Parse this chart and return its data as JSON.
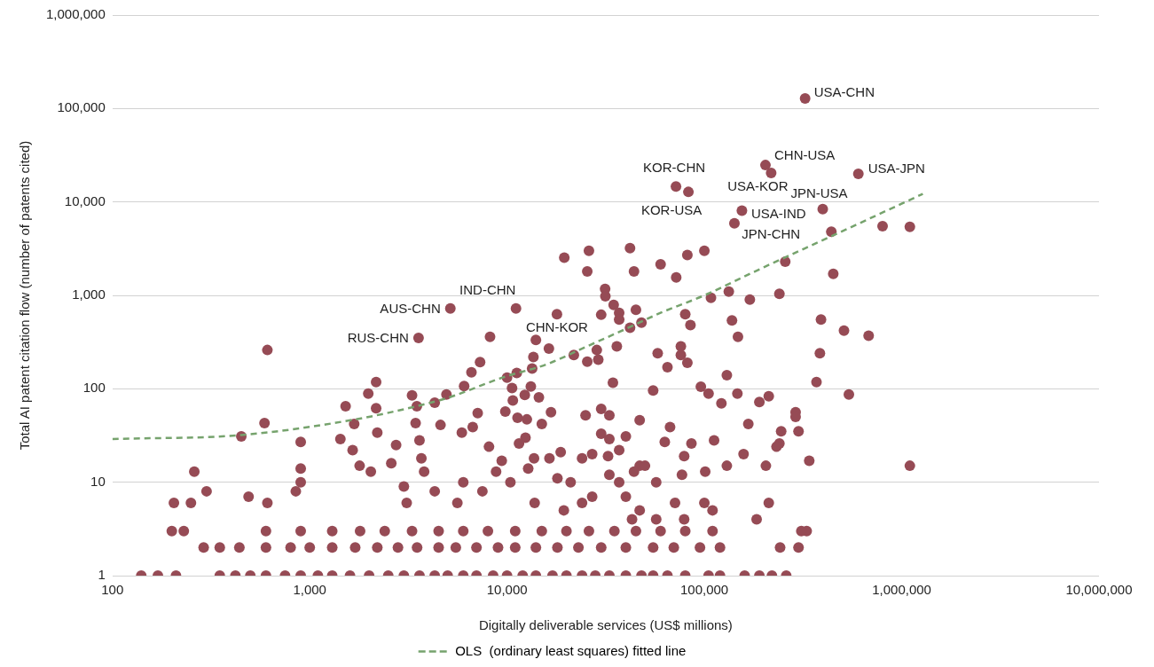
{
  "chart_data": {
    "type": "scatter",
    "xlabel": "Digitally deliverable services (US$ millions)",
    "ylabel": "Total AI patent citation flow (number of patents cited)",
    "log": "xy",
    "grid": "y",
    "legend": "bottom",
    "marker": "circle",
    "xlim": [
      100,
      10000000
    ],
    "xticks": [
      {
        "value": 100,
        "label": "100"
      },
      {
        "value": 1000,
        "label": "1,000"
      },
      {
        "value": 10000,
        "label": "10,000"
      },
      {
        "value": 100000,
        "label": "100,000"
      },
      {
        "value": 1000000,
        "label": "1,000,000"
      },
      {
        "value": 10000000,
        "label": "10,000,000"
      }
    ],
    "ylim": [
      1,
      1000000
    ],
    "yticks": [
      {
        "value": 1,
        "label": "1"
      },
      {
        "value": 10,
        "label": "10"
      },
      {
        "value": 100,
        "label": "100"
      },
      {
        "value": 1000,
        "label": "1,000"
      },
      {
        "value": 10000,
        "label": "10,000"
      },
      {
        "value": 100000,
        "label": "100,000"
      },
      {
        "value": 1000000,
        "label": "1,000,000"
      }
    ],
    "series": [
      {
        "type": "scatter",
        "color": "#964b55",
        "x": [
          140,
          170,
          210,
          350,
          420,
          500,
          600,
          750,
          900,
          1100,
          1300,
          1600,
          2000,
          2500,
          3000,
          3600,
          4300,
          5000,
          6000,
          7000,
          8500,
          10000,
          12000,
          14000,
          17000,
          20000,
          24000,
          28000,
          33000,
          40000,
          48000,
          55000,
          65000,
          80000,
          105000,
          120000,
          160000,
          190000,
          220000,
          260000,
          290,
          350,
          440,
          600,
          800,
          1000,
          1300,
          1700,
          2200,
          2800,
          3500,
          4500,
          5500,
          7000,
          9000,
          11000,
          14000,
          18000,
          23000,
          30000,
          40000,
          55000,
          70000,
          95000,
          120000,
          200,
          230,
          600,
          900,
          1300,
          1800,
          2400,
          3300,
          4500,
          6000,
          8000,
          11000,
          15000,
          20000,
          26000,
          35000,
          45000,
          60000,
          80000,
          110000,
          330000,
          250,
          260,
          300,
          205,
          450,
          590,
          610,
          490,
          610,
          900,
          900,
          900,
          850,
          1520,
          1980,
          2170,
          1680,
          2170,
          2200,
          1430,
          1650,
          1790,
          2040,
          2740,
          2590,
          3300,
          3490,
          3440,
          3600,
          3680,
          4300,
          4930,
          4600,
          5900,
          6060,
          6600,
          7300,
          8200,
          7100,
          6700,
          8100,
          10000,
          10600,
          10700,
          9800,
          11300,
          12600,
          13200,
          13600,
          14000,
          14500,
          12400,
          11500,
          3000,
          3100,
          3800,
          4300,
          5600,
          6000,
          7500,
          8800,
          9400,
          10400,
          12800,
          13800,
          19500,
          26000,
          25500,
          42000,
          44000,
          60000,
          72000,
          82000,
          100000,
          257000,
          440000,
          450000,
          17900,
          31400,
          31500,
          34700,
          37000,
          37000,
          30000,
          45000,
          48000,
          42000,
          80000,
          85000,
          108000,
          133000,
          170000,
          240000,
          138000,
          148000,
          390000,
          385000,
          370000,
          28500,
          29000,
          36000,
          25500,
          21800,
          16300,
          13400,
          11200,
          58000,
          76000,
          76000,
          82000,
          65000,
          130000,
          96000,
          105000,
          122000,
          147000,
          190000,
          212000,
          290000,
          300000,
          240000,
          167000,
          158000,
          205000,
          130000,
          340000,
          212000,
          184000,
          55000,
          34400,
          47000,
          40000,
          67000,
          63000,
          86000,
          79000,
          101000,
          77000,
          112000,
          100000,
          110000,
          71000,
          57000,
          79000,
          30000,
          33000,
          25000,
          30000,
          33000,
          32500,
          37000,
          27000,
          24000,
          47000,
          44000,
          50000,
          57000,
          37000,
          33000,
          21000,
          18000,
          15000,
          16700,
          12300,
          18700,
          16400,
          13700,
          24000,
          27000,
          40000,
          47000,
          43000,
          19400,
          800000,
          1100000,
          510000,
          680000,
          540000,
          290000,
          245000,
          232000,
          1100000,
          310000,
          242000,
          300000,
          324000,
          204000,
          218000,
          603000,
          71800,
          83000,
          155000,
          142000,
          398000,
          5160,
          11100,
          3560
        ],
        "values": [
          1,
          1,
          1,
          1,
          1,
          1,
          1,
          1,
          1,
          1,
          1,
          1,
          1,
          1,
          1,
          1,
          1,
          1,
          1,
          1,
          1,
          1,
          1,
          1,
          1,
          1,
          1,
          1,
          1,
          1,
          1,
          1,
          1,
          1,
          1,
          1,
          1,
          1,
          1,
          1,
          2,
          2,
          2,
          2,
          2,
          2,
          2,
          2,
          2,
          2,
          2,
          2,
          2,
          2,
          2,
          2,
          2,
          2,
          2,
          2,
          2,
          2,
          2,
          2,
          2,
          3,
          3,
          3,
          3,
          3,
          3,
          3,
          3,
          3,
          3,
          3,
          3,
          3,
          3,
          3,
          3,
          3,
          3,
          3,
          3,
          3,
          6,
          13,
          8,
          6,
          31,
          43,
          260,
          7,
          6,
          27,
          14,
          10,
          8,
          65,
          89,
          118,
          42,
          62,
          34,
          29,
          22,
          15,
          13,
          25,
          16,
          85,
          65,
          43,
          28,
          18,
          71,
          87,
          41,
          34,
          107,
          150,
          193,
          360,
          55,
          39,
          24,
          132,
          102,
          75,
          57,
          49,
          47,
          106,
          219,
          333,
          81,
          30,
          26,
          9,
          6,
          13,
          8,
          6,
          10,
          8,
          13,
          17,
          10,
          14,
          6,
          2530,
          3000,
          1800,
          3200,
          1800,
          2150,
          1560,
          2700,
          3000,
          2300,
          4800,
          1700,
          630,
          1170,
          980,
          790,
          650,
          550,
          620,
          700,
          510,
          450,
          630,
          480,
          940,
          1100,
          900,
          1040,
          540,
          360,
          550,
          240,
          118,
          260,
          205,
          285,
          195,
          230,
          270,
          165,
          148,
          240,
          285,
          230,
          190,
          170,
          140,
          105,
          89,
          70,
          89,
          72,
          83,
          56,
          35,
          26,
          42,
          20,
          15,
          15,
          17,
          6,
          4,
          96,
          116,
          46,
          31,
          39,
          27,
          26,
          19,
          13,
          12,
          28,
          6,
          5,
          6,
          4,
          4,
          61,
          52,
          52,
          33,
          29,
          19,
          22,
          20,
          18,
          15,
          13,
          15,
          10,
          10,
          12,
          10,
          11,
          42,
          56,
          86,
          21,
          18,
          18,
          6,
          7,
          7,
          5,
          4,
          5,
          5500,
          5400,
          420,
          370,
          87,
          50,
          35,
          24,
          15,
          3,
          2,
          2,
          128000,
          24800,
          20400,
          20000,
          14600,
          12800,
          8050,
          5900,
          8400,
          724,
          724,
          350
        ]
      },
      {
        "type": "line",
        "name": "OLS  (ordinary least squares) fitted line",
        "color": "#76a36d",
        "line_style": "dashed",
        "marker": "none",
        "x": [
          100,
          450,
          1700,
          4000,
          5100,
          9500,
          16000,
          25000,
          40800,
          60000,
          100000,
          200000,
          462000,
          1280000
        ],
        "values": [
          29,
          32,
          47,
          70,
          81,
          132,
          184,
          280,
          446,
          650,
          1000,
          2000,
          4500,
          12200
        ]
      }
    ],
    "annotations": [
      {
        "text": "USA-CHN",
        "x": 324000,
        "y": 128000
      },
      {
        "text": "CHN-USA",
        "x": 204000,
        "y": 24800
      },
      {
        "text": "USA-JPN",
        "x": 603000,
        "y": 20000
      },
      {
        "text": "KOR-CHN",
        "x": 71800,
        "y": 14600
      },
      {
        "text": "KOR-USA",
        "x": 83000,
        "y": 12800
      },
      {
        "text": "USA-KOR",
        "x": 155000,
        "y": 8050
      },
      {
        "text": "USA-IND",
        "x": 142000,
        "y": 5900
      },
      {
        "text": "JPN-CHN",
        "x": 257000,
        "y": 2300
      },
      {
        "text": "JPN-USA",
        "x": 398000,
        "y": 8400
      },
      {
        "text": "AUS-CHN",
        "x": 5160,
        "y": 724
      },
      {
        "text": "IND-CHN",
        "x": 11100,
        "y": 724
      },
      {
        "text": "RUS-CHN",
        "x": 3560,
        "y": 350
      },
      {
        "text": "CHN-KOR",
        "x": 17900,
        "y": 630
      }
    ]
  }
}
